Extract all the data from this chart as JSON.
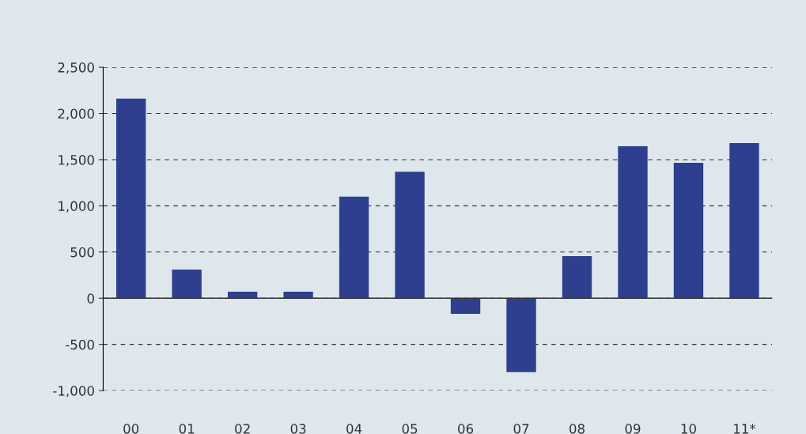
{
  "chart_data": {
    "type": "bar",
    "categories": [
      "00",
      "01",
      "02",
      "03",
      "04",
      "05",
      "06",
      "07",
      "08",
      "09",
      "10",
      "11*"
    ],
    "values": [
      2160,
      310,
      70,
      70,
      1100,
      1370,
      -170,
      -800,
      455,
      1645,
      1465,
      1680
    ],
    "color": "#2e3f8f",
    "ylim": [
      -1000,
      2500
    ],
    "yticks": [
      {
        "value": -1000,
        "label": "-1,000"
      },
      -500,
      0,
      500,
      {
        "value": 1000,
        "label": "1,000"
      },
      {
        "value": 1500,
        "label": "1,500"
      },
      {
        "value": 2000,
        "label": "2,000"
      },
      {
        "value": 2500,
        "label": "2,500"
      }
    ],
    "grid": "y"
  }
}
